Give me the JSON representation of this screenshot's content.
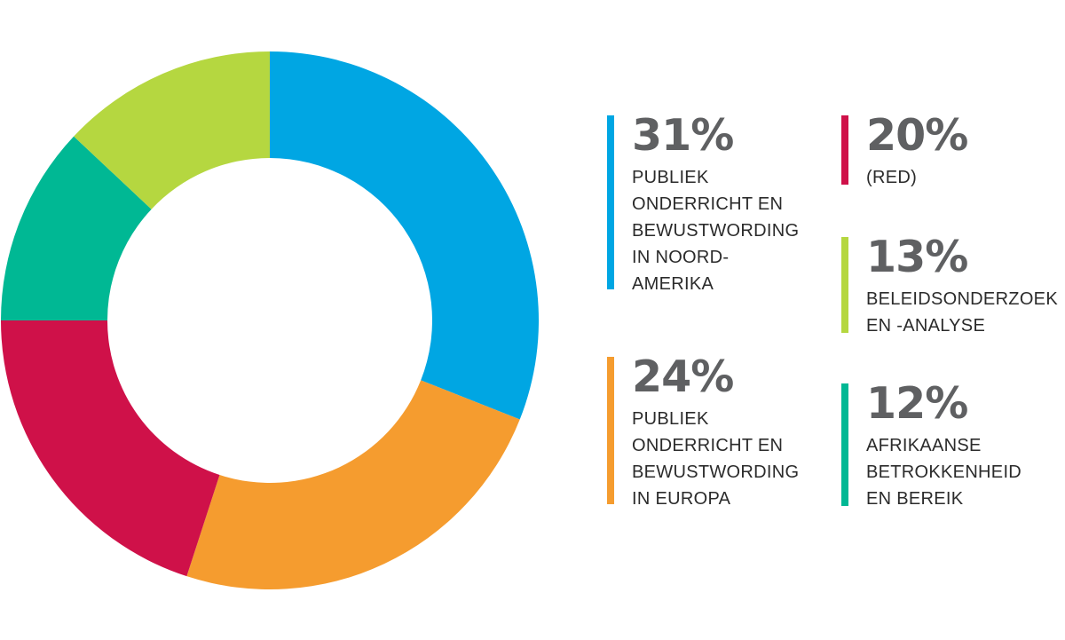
{
  "chart_data": {
    "type": "pie",
    "donut": true,
    "title": "",
    "slices": [
      {
        "value": 31,
        "percent_label": "31%",
        "label": "PUBLIEK\nONDERRICHT EN\nBEWUSTWORDING\nIN NOORD-\nAMERIKA",
        "color": "#00a6e3"
      },
      {
        "value": 24,
        "percent_label": "24%",
        "label": "PUBLIEK\nONDERRICHT EN\nBEWUSTWORDING\nIN EUROPA",
        "color": "#f59c2f"
      },
      {
        "value": 20,
        "percent_label": "20%",
        "label": "(RED)",
        "color": "#cf1149"
      },
      {
        "value": 12,
        "percent_label": "12%",
        "label": "AFRIKAANSE\nBETROKKENHEID\nEN BEREIK",
        "color": "#00b894"
      },
      {
        "value": 13,
        "percent_label": "13%",
        "label": "BELEIDSONDERZOEK\nEN -ANALYSE",
        "color": "#b5d740"
      }
    ],
    "legend_placement": "right"
  }
}
